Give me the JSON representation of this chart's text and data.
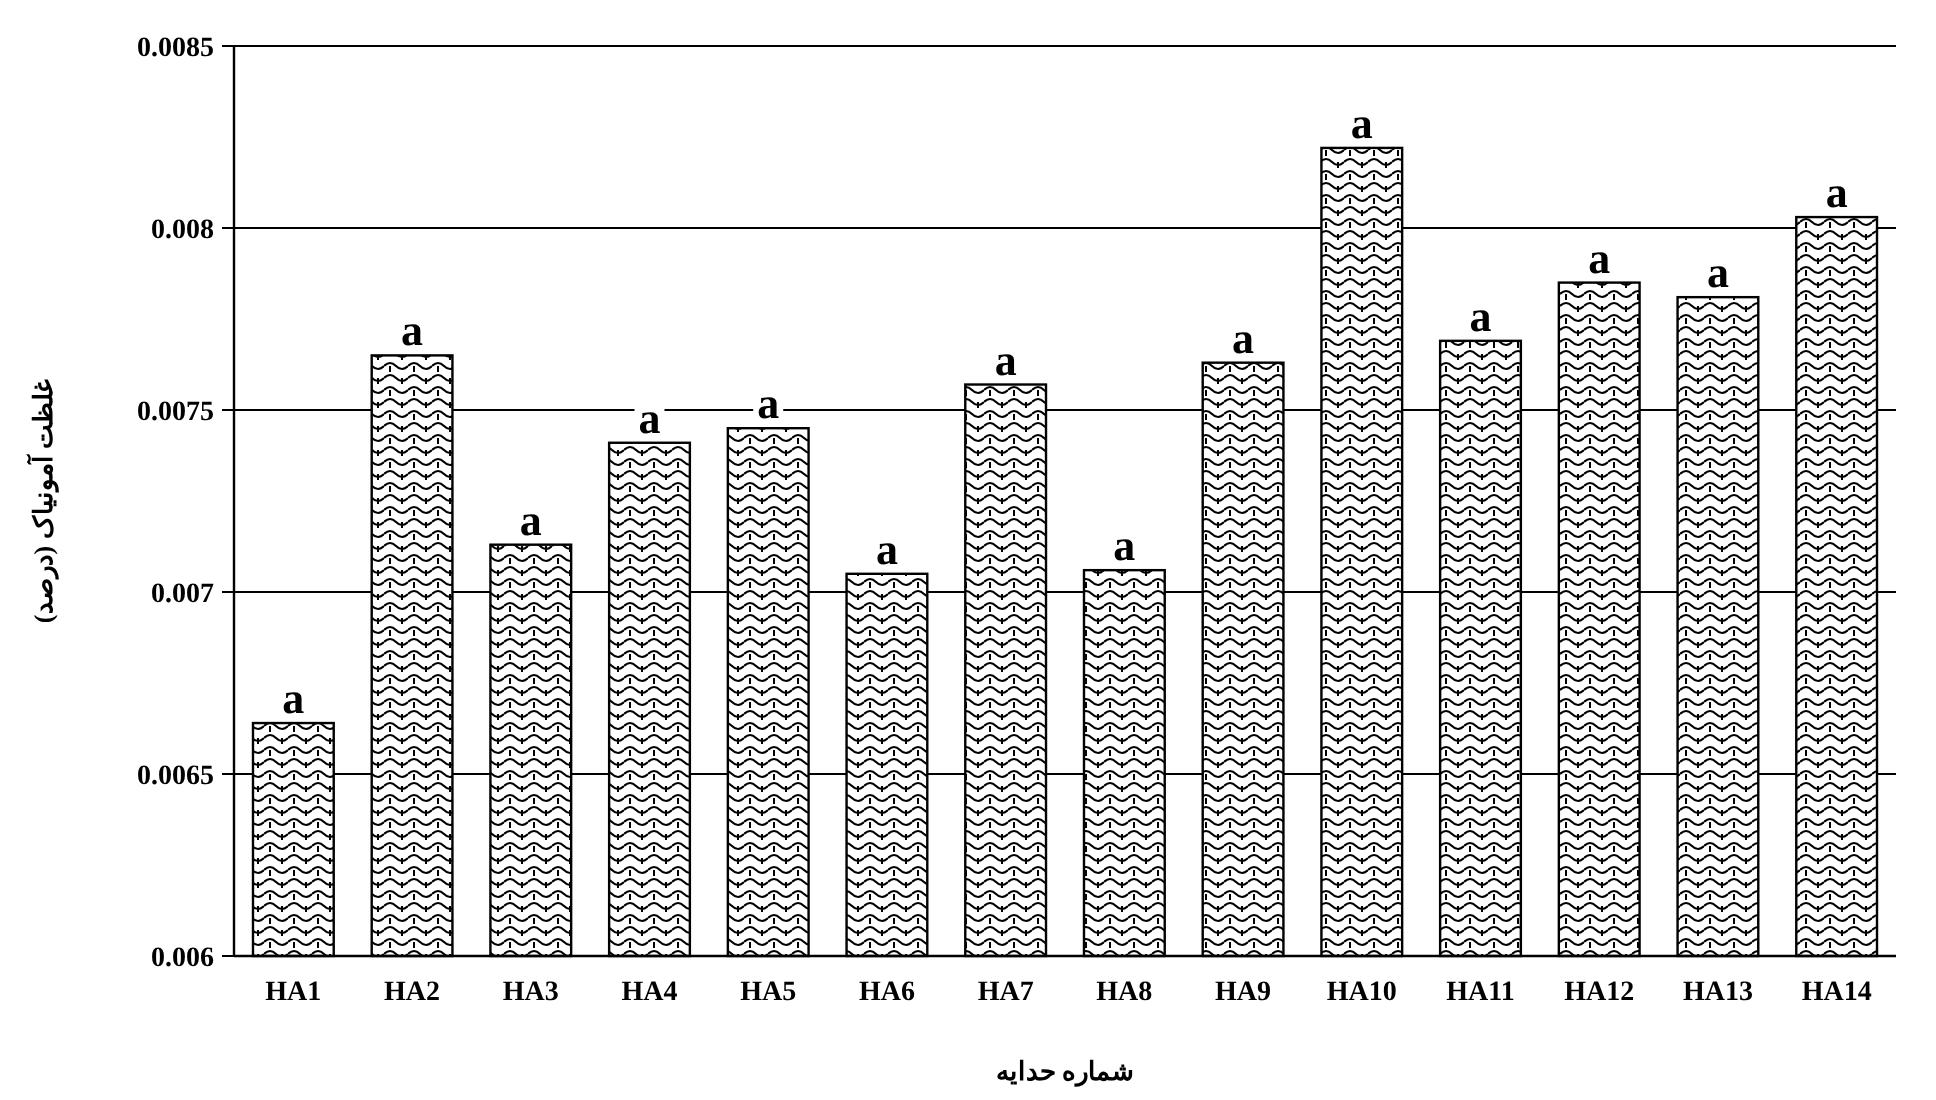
{
  "chart_data": {
    "type": "bar",
    "categories": [
      "HA1",
      "HA2",
      "HA3",
      "HA4",
      "HA5",
      "HA6",
      "HA7",
      "HA8",
      "HA9",
      "HA10",
      "HA11",
      "HA12",
      "HA13",
      "HA14"
    ],
    "values": [
      0.00664,
      0.00765,
      0.00713,
      0.00741,
      0.00745,
      0.00705,
      0.00757,
      0.00706,
      0.00763,
      0.00822,
      0.00769,
      0.00785,
      0.00781,
      0.00803
    ],
    "value_labels": [
      "a",
      "a",
      "a",
      "a",
      "a",
      "a",
      "a",
      "a",
      "a",
      "a",
      "a",
      "a",
      "a",
      "a"
    ],
    "color": "#000000",
    "ylim": [
      0.006,
      0.0085
    ],
    "yticks": [
      0.006,
      0.0065,
      0.007,
      0.0075,
      0.008,
      0.0085
    ],
    "grid": "y",
    "xlabel": "شماره حدایه",
    "ylabel": "غلظت آمونیاک (درصد)"
  }
}
